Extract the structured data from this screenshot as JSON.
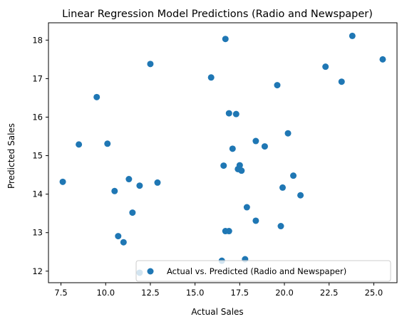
{
  "chart_data": {
    "type": "scatter",
    "title": "Linear Regression Model Predictions (Radio and Newspaper)",
    "xlabel": "Actual Sales",
    "ylabel": "Predicted Sales",
    "xlim": [
      6.8,
      26.3
    ],
    "ylim": [
      11.7,
      18.45
    ],
    "xticks": [
      7.5,
      10.0,
      12.5,
      15.0,
      17.5,
      20.0,
      22.5,
      25.0
    ],
    "yticks": [
      12,
      13,
      14,
      15,
      16,
      17,
      18
    ],
    "xtick_labels": [
      "7.5",
      "10.0",
      "12.5",
      "15.0",
      "17.5",
      "20.0",
      "22.5",
      "25.0"
    ],
    "ytick_labels": [
      "12",
      "13",
      "14",
      "15",
      "16",
      "17",
      "18"
    ],
    "grid": false,
    "legend_position": "lower-right",
    "color": "#1f77b4",
    "series": [
      {
        "name": "Actual vs. Predicted (Radio and Newspaper)",
        "points": [
          [
            7.6,
            14.32
          ],
          [
            8.5,
            15.29
          ],
          [
            9.5,
            16.52
          ],
          [
            10.1,
            15.31
          ],
          [
            10.5,
            14.08
          ],
          [
            10.7,
            12.91
          ],
          [
            11.0,
            12.75
          ],
          [
            11.3,
            14.39
          ],
          [
            11.5,
            13.52
          ],
          [
            11.9,
            14.22
          ],
          [
            11.9,
            11.96
          ],
          [
            12.5,
            17.38
          ],
          [
            12.9,
            14.3
          ],
          [
            15.9,
            17.03
          ],
          [
            16.5,
            12.27
          ],
          [
            16.6,
            14.74
          ],
          [
            16.7,
            18.03
          ],
          [
            16.7,
            13.04
          ],
          [
            16.9,
            16.1
          ],
          [
            16.9,
            13.04
          ],
          [
            17.1,
            15.18
          ],
          [
            17.3,
            16.08
          ],
          [
            17.4,
            14.65
          ],
          [
            17.5,
            14.75
          ],
          [
            17.6,
            14.61
          ],
          [
            17.8,
            12.31
          ],
          [
            17.9,
            13.66
          ],
          [
            18.4,
            15.38
          ],
          [
            18.4,
            13.31
          ],
          [
            18.9,
            15.24
          ],
          [
            19.6,
            16.83
          ],
          [
            19.8,
            13.17
          ],
          [
            19.9,
            14.17
          ],
          [
            20.2,
            15.58
          ],
          [
            20.5,
            14.48
          ],
          [
            20.9,
            13.97
          ],
          [
            22.3,
            17.31
          ],
          [
            23.2,
            16.92
          ],
          [
            23.8,
            18.11
          ],
          [
            25.5,
            17.5
          ]
        ]
      }
    ]
  }
}
